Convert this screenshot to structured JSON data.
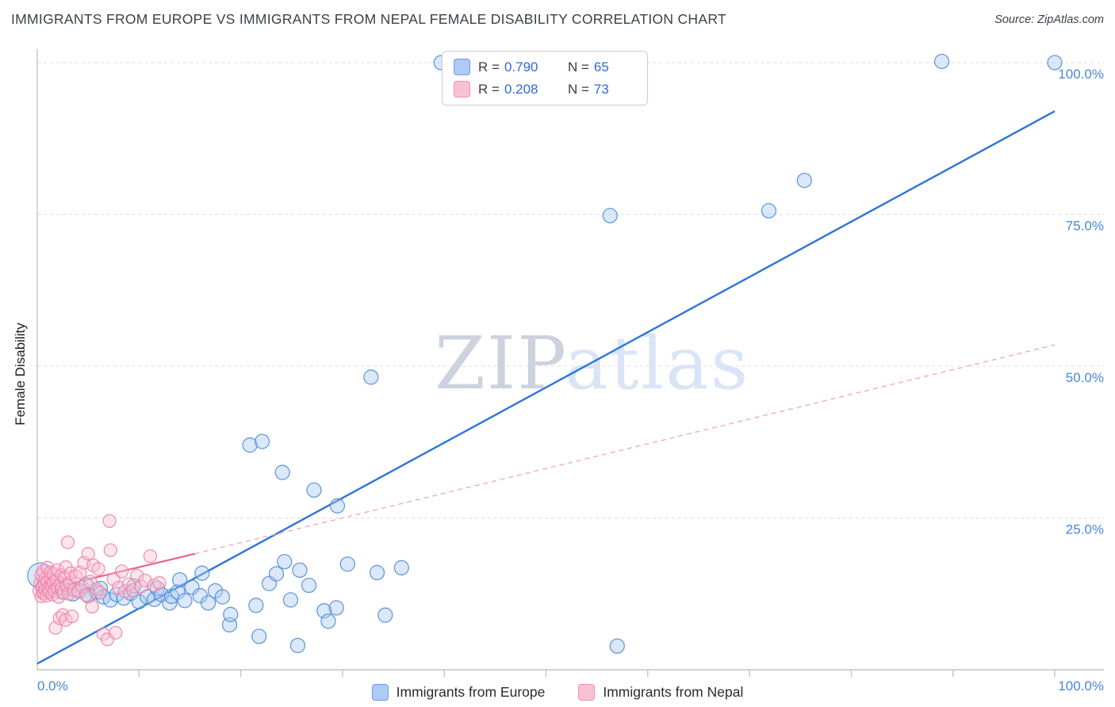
{
  "header": {
    "title": "IMMIGRANTS FROM EUROPE VS IMMIGRANTS FROM NEPAL FEMALE DISABILITY CORRELATION CHART",
    "source": "Source: ZipAtlas.com"
  },
  "watermark": {
    "part1": "ZIP",
    "part2": "atlas"
  },
  "legend_box": {
    "rows": [
      {
        "series": "europe",
        "r_label": "R =",
        "r_value": "0.790",
        "n_label": "N =",
        "n_value": "65"
      },
      {
        "series": "nepal",
        "r_label": "R =",
        "r_value": "0.208",
        "n_label": "N =",
        "n_value": "73"
      }
    ]
  },
  "axes": {
    "y_label": "Female Disability",
    "y_ticks": [
      {
        "label": "100.0%",
        "value": 100
      },
      {
        "label": "75.0%",
        "value": 75
      },
      {
        "label": "50.0%",
        "value": 50
      },
      {
        "label": "25.0%",
        "value": 25
      }
    ],
    "x_ticks": [
      {
        "label": "0.0%",
        "value": 0
      },
      {
        "label": "100.0%",
        "value": 100
      }
    ]
  },
  "bottom_legend": [
    {
      "series": "europe",
      "label": "Immigrants from Europe"
    },
    {
      "series": "nepal",
      "label": "Immigrants from Nepal"
    }
  ],
  "colors": {
    "europe_fill": "#A7C9F2",
    "europe_stroke": "#4E8AD4",
    "europe_line": "#2E75D8",
    "nepal_fill": "#F9C0D2",
    "nepal_stroke": "#EE7FA8",
    "nepal_line": "#E8638C",
    "nepal_dash": "#F2A3B8",
    "grid": "#dcdcdc",
    "axis": "#c4c4c4",
    "tick_label": "#4A86D8",
    "wm1": "#ccd3de",
    "wm2": "#d9e5f6"
  },
  "chart_data": {
    "type": "scatter",
    "title": "IMMIGRANTS FROM EUROPE VS IMMIGRANTS FROM NEPAL FEMALE DISABILITY CORRELATION CHART",
    "xlabel": "",
    "ylabel": "Female Disability",
    "xlim": [
      0,
      104
    ],
    "ylim": [
      0,
      104
    ],
    "grid": "horizontal-dashed",
    "legend_position": "top-center",
    "series": [
      {
        "name": "Immigrants from Europe",
        "R": 0.79,
        "N": 65,
        "default_radius": 9,
        "points": [
          [
            0.3,
            15.5,
            16
          ],
          [
            0.8,
            13.5,
            12
          ],
          [
            1.2,
            13.0
          ],
          [
            2.0,
            14.4
          ],
          [
            2.5,
            12.8
          ],
          [
            3.0,
            13.6
          ],
          [
            3.5,
            12.5
          ],
          [
            4.2,
            13.0
          ],
          [
            4.8,
            14.0
          ],
          [
            5.0,
            12.2
          ],
          [
            5.8,
            12.8
          ],
          [
            6.2,
            13.4
          ],
          [
            6.5,
            12.0
          ],
          [
            7.2,
            11.5
          ],
          [
            7.8,
            12.4
          ],
          [
            8.5,
            11.8
          ],
          [
            9.2,
            12.6
          ],
          [
            9.5,
            13.8
          ],
          [
            10.0,
            11.2
          ],
          [
            10.8,
            12.0
          ],
          [
            11.5,
            11.6
          ],
          [
            11.8,
            13.4
          ],
          [
            12.2,
            12.4
          ],
          [
            13.0,
            11.0
          ],
          [
            13.2,
            12.1
          ],
          [
            13.8,
            12.8
          ],
          [
            14.0,
            14.8
          ],
          [
            14.5,
            11.4
          ],
          [
            15.2,
            13.6
          ],
          [
            16.0,
            12.2
          ],
          [
            16.2,
            15.9
          ],
          [
            16.8,
            11.0
          ],
          [
            17.5,
            13.0
          ],
          [
            18.2,
            12.0
          ],
          [
            18.9,
            7.4
          ],
          [
            19.0,
            9.1
          ],
          [
            20.9,
            37.0
          ],
          [
            21.5,
            10.6
          ],
          [
            21.8,
            5.5
          ],
          [
            22.1,
            37.6
          ],
          [
            22.8,
            14.2
          ],
          [
            23.5,
            15.8
          ],
          [
            24.1,
            32.5
          ],
          [
            24.3,
            17.8
          ],
          [
            24.9,
            11.5
          ],
          [
            25.6,
            4.0
          ],
          [
            25.8,
            16.4
          ],
          [
            26.7,
            13.9
          ],
          [
            27.2,
            29.6
          ],
          [
            28.2,
            9.7
          ],
          [
            28.6,
            8.0
          ],
          [
            29.4,
            10.2
          ],
          [
            29.5,
            27.0
          ],
          [
            30.5,
            17.4
          ],
          [
            32.8,
            48.2
          ],
          [
            33.4,
            16.0
          ],
          [
            34.2,
            9.0
          ],
          [
            35.8,
            16.8
          ],
          [
            39.7,
            100.0
          ],
          [
            56.3,
            74.8
          ],
          [
            57.0,
            3.9
          ],
          [
            71.9,
            75.6
          ],
          [
            75.4,
            80.6
          ],
          [
            88.9,
            100.2
          ],
          [
            100.0,
            100.0
          ]
        ]
      },
      {
        "name": "Immigrants from Nepal",
        "R": 0.208,
        "N": 73,
        "default_radius": 8,
        "points": [
          [
            0.2,
            13.0
          ],
          [
            0.3,
            14.2
          ],
          [
            0.4,
            12.1
          ],
          [
            0.4,
            15.6
          ],
          [
            0.5,
            13.6
          ],
          [
            0.6,
            12.6
          ],
          [
            0.6,
            16.2
          ],
          [
            0.7,
            14.0
          ],
          [
            0.8,
            13.2
          ],
          [
            0.8,
            15.0
          ],
          [
            0.9,
            12.2
          ],
          [
            1.0,
            14.6
          ],
          [
            1.0,
            16.8
          ],
          [
            1.1,
            13.4
          ],
          [
            1.2,
            12.8
          ],
          [
            1.3,
            15.0
          ],
          [
            1.3,
            16.0
          ],
          [
            1.4,
            13.8
          ],
          [
            1.5,
            12.4
          ],
          [
            1.6,
            14.4
          ],
          [
            1.6,
            15.8
          ],
          [
            1.7,
            13.0
          ],
          [
            1.8,
            6.9
          ],
          [
            1.9,
            14.8
          ],
          [
            2.0,
            13.5
          ],
          [
            2.0,
            16.4
          ],
          [
            2.1,
            12.0
          ],
          [
            2.2,
            8.5
          ],
          [
            2.3,
            14.1
          ],
          [
            2.4,
            13.3
          ],
          [
            2.4,
            15.6
          ],
          [
            2.5,
            9.0
          ],
          [
            2.6,
            12.7
          ],
          [
            2.7,
            15.2
          ],
          [
            2.8,
            8.2
          ],
          [
            2.8,
            16.9
          ],
          [
            2.9,
            13.9
          ],
          [
            3.0,
            21.0
          ],
          [
            3.1,
            12.5
          ],
          [
            3.2,
            14.3
          ],
          [
            3.3,
            15.9
          ],
          [
            3.4,
            8.8
          ],
          [
            3.6,
            13.1
          ],
          [
            3.8,
            15.4
          ],
          [
            4.0,
            12.9
          ],
          [
            4.2,
            16.0
          ],
          [
            4.4,
            13.7
          ],
          [
            4.6,
            17.6
          ],
          [
            4.8,
            12.3
          ],
          [
            5.0,
            19.1
          ],
          [
            5.2,
            14.5
          ],
          [
            5.4,
            10.4
          ],
          [
            5.5,
            17.2
          ],
          [
            5.8,
            13.3
          ],
          [
            6.0,
            16.6
          ],
          [
            6.2,
            12.7
          ],
          [
            6.5,
            5.9
          ],
          [
            6.9,
            5.0
          ],
          [
            7.1,
            24.5
          ],
          [
            7.2,
            19.7
          ],
          [
            7.5,
            14.9
          ],
          [
            7.7,
            6.1
          ],
          [
            8.0,
            13.5
          ],
          [
            8.3,
            16.2
          ],
          [
            8.6,
            12.9
          ],
          [
            9.0,
            14.1
          ],
          [
            9.4,
            13.1
          ],
          [
            9.8,
            15.5
          ],
          [
            10.2,
            13.7
          ],
          [
            10.6,
            14.7
          ],
          [
            11.1,
            18.7
          ],
          [
            11.5,
            13.9
          ],
          [
            12.0,
            14.3
          ]
        ]
      }
    ],
    "trend_lines": [
      {
        "series": "Immigrants from Europe",
        "style": "solid",
        "x1": 0,
        "y1": 1.0,
        "x2": 100,
        "y2": 92.0
      },
      {
        "series": "Immigrants from Nepal",
        "style": "solid",
        "x1": 0,
        "y1": 12.9,
        "x2": 15.5,
        "y2": 19.1
      },
      {
        "series": "Immigrants from Nepal",
        "style": "dashed",
        "x1": 15.5,
        "y1": 19.1,
        "x2": 100,
        "y2": 53.5
      }
    ]
  }
}
